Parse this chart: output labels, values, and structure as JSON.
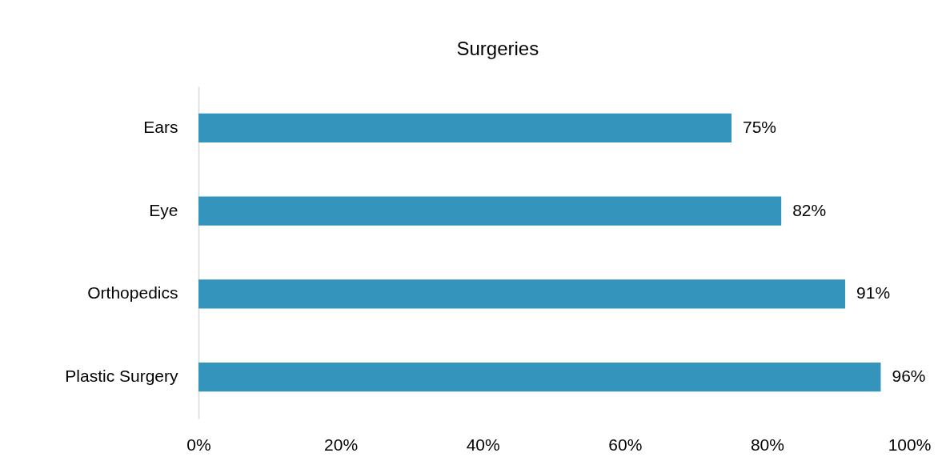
{
  "chart_data": {
    "type": "bar",
    "orientation": "horizontal",
    "title": "Surgeries",
    "categories": [
      "Ears",
      "Eye",
      "Orthopedics",
      "Plastic Surgery"
    ],
    "values": [
      75,
      82,
      91,
      96
    ],
    "color": "#3594bb",
    "value_labels": [
      "75%",
      "82%",
      "91%",
      "96%"
    ],
    "xlim": [
      0,
      100
    ],
    "xticks": [
      {
        "value": 0,
        "label": "0%"
      },
      {
        "value": 20,
        "label": "20%"
      },
      {
        "value": 40,
        "label": "40%"
      },
      {
        "value": 60,
        "label": "60%"
      },
      {
        "value": 80,
        "label": "80%"
      },
      {
        "value": 100,
        "label": "100%"
      }
    ],
    "grid": false
  }
}
